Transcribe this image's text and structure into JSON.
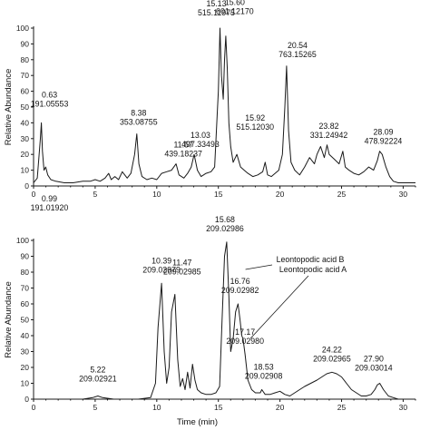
{
  "chart_data": [
    {
      "type": "line",
      "ylabel": "Relative Abundance",
      "xlabel": "",
      "ylim": [
        0,
        100
      ],
      "xlim": [
        0,
        31
      ],
      "yticks": [
        0,
        10,
        20,
        30,
        40,
        50,
        60,
        70,
        80,
        90,
        100
      ],
      "xticks": [
        0,
        5,
        10,
        15,
        20,
        25,
        30
      ],
      "series": [
        {
          "x": [
            0,
            0.3,
            0.55,
            0.63,
            0.72,
            0.85,
            0.99,
            1.15,
            1.4,
            1.8,
            2.5,
            3.2,
            4.0,
            4.6,
            5.0,
            5.4,
            5.8,
            6.1,
            6.3,
            6.6,
            6.9,
            7.2,
            7.6,
            7.9,
            8.2,
            8.38,
            8.55,
            8.8,
            9.2,
            9.6,
            10.0,
            10.4,
            10.8,
            11.2,
            11.57,
            11.8,
            12.2,
            12.5,
            12.8,
            13.03,
            13.3,
            13.6,
            14.0,
            14.4,
            14.7,
            14.9,
            15.0,
            15.13,
            15.25,
            15.4,
            15.5,
            15.6,
            15.72,
            15.85,
            16.0,
            16.2,
            16.5,
            16.8,
            17.1,
            17.4,
            17.8,
            18.2,
            18.6,
            18.8,
            19.0,
            19.3,
            19.6,
            19.9,
            20.2,
            20.4,
            20.54,
            20.7,
            20.9,
            21.2,
            21.6,
            22.0,
            22.4,
            22.8,
            23.0,
            23.3,
            23.6,
            23.82,
            24.0,
            24.4,
            24.8,
            25.1,
            25.3,
            25.6,
            26.0,
            26.4,
            26.8,
            27.2,
            27.6,
            27.9,
            28.09,
            28.3,
            28.6,
            28.9,
            29.2,
            29.6,
            30.0,
            30.5,
            31.0
          ],
          "y": [
            2,
            5,
            30,
            40,
            22,
            10,
            12,
            7,
            4,
            3,
            2,
            2,
            3,
            3,
            4,
            3,
            5,
            8,
            4,
            6,
            4,
            9,
            5,
            8,
            20,
            33,
            14,
            6,
            4,
            5,
            4,
            8,
            9,
            10,
            14,
            7,
            5,
            8,
            12,
            20,
            10,
            6,
            8,
            9,
            12,
            45,
            60,
            100,
            70,
            55,
            80,
            95,
            75,
            40,
            25,
            15,
            20,
            12,
            10,
            8,
            6,
            7,
            9,
            15,
            7,
            6,
            8,
            10,
            20,
            50,
            76,
            35,
            15,
            10,
            7,
            12,
            18,
            14,
            20,
            25,
            18,
            26,
            20,
            17,
            14,
            22,
            12,
            10,
            8,
            7,
            9,
            12,
            10,
            16,
            22,
            20,
            12,
            6,
            3,
            2,
            2,
            2,
            2
          ]
        }
      ],
      "annotations": [
        {
          "rt": "0.63",
          "mz": "191.05553",
          "x": 0.63,
          "y": 40
        },
        {
          "rt": "0.99",
          "mz": "191.01920",
          "x": 0.99,
          "y": 12
        },
        {
          "rt": "8.38",
          "mz": "353.08755",
          "x": 8.38,
          "y": 33
        },
        {
          "rt": "11.57",
          "mz": "439.18237",
          "x": 11.57,
          "y": 14
        },
        {
          "rt": "13.03",
          "mz": "497.33493",
          "x": 13.03,
          "y": 20
        },
        {
          "rt": "15.13",
          "mz": "515.11975",
          "x": 15.13,
          "y": 100
        },
        {
          "rt": "15.60",
          "mz": "601.12170",
          "x": 15.6,
          "y": 95
        },
        {
          "rt": "15.92",
          "mz": "515.12030",
          "x": 15.92,
          "y": 30
        },
        {
          "rt": "20.54",
          "mz": "763.15265",
          "x": 20.54,
          "y": 76
        },
        {
          "rt": "23.82",
          "mz": "331.24942",
          "x": 23.82,
          "y": 26
        },
        {
          "rt": "28.09",
          "mz": "478.92224",
          "x": 28.09,
          "y": 22
        }
      ]
    },
    {
      "type": "line",
      "ylabel": "Relative Abundance",
      "xlabel": "Time (min)",
      "ylim": [
        0,
        100
      ],
      "xlim": [
        0,
        31
      ],
      "yticks": [
        0,
        10,
        20,
        30,
        40,
        50,
        60,
        70,
        80,
        90,
        100
      ],
      "xticks": [
        0,
        5,
        10,
        15,
        20,
        25,
        30
      ],
      "series": [
        {
          "x": [
            0,
            1,
            2,
            3,
            4,
            4.8,
            5.22,
            5.6,
            6.5,
            7.5,
            8.5,
            9.5,
            9.9,
            10.1,
            10.39,
            10.6,
            10.8,
            11.0,
            11.2,
            11.47,
            11.7,
            11.9,
            12.1,
            12.3,
            12.5,
            12.7,
            12.9,
            13.1,
            13.3,
            13.6,
            14.0,
            14.4,
            14.8,
            15.1,
            15.3,
            15.5,
            15.68,
            15.85,
            16.0,
            16.2,
            16.4,
            16.6,
            16.76,
            16.9,
            17.0,
            17.17,
            17.4,
            17.7,
            18.0,
            18.4,
            18.53,
            18.8,
            19.2,
            19.6,
            20.0,
            20.4,
            20.8,
            21.2,
            21.6,
            22.0,
            22.5,
            23.0,
            23.4,
            23.8,
            24.22,
            24.6,
            25.0,
            25.4,
            25.8,
            26.2,
            26.6,
            27.0,
            27.4,
            27.7,
            27.9,
            28.1,
            28.4,
            28.8,
            29.2,
            29.6,
            30.0,
            30.5,
            31.0
          ],
          "y": [
            0,
            0,
            0,
            0,
            0,
            1,
            2,
            1,
            0,
            0,
            0,
            1,
            10,
            45,
            73,
            30,
            10,
            20,
            55,
            66,
            25,
            8,
            13,
            6,
            17,
            7,
            22,
            12,
            6,
            4,
            3,
            3,
            4,
            8,
            50,
            90,
            99,
            65,
            30,
            38,
            55,
            60,
            50,
            40,
            38,
            28,
            12,
            6,
            4,
            4,
            6,
            3,
            3,
            4,
            5,
            3,
            2,
            4,
            6,
            8,
            10,
            12,
            14,
            16,
            17,
            16,
            14,
            10,
            6,
            4,
            2,
            2,
            3,
            6,
            9,
            10,
            6,
            2,
            1,
            0,
            0,
            0,
            0
          ]
        }
      ],
      "annotations": [
        {
          "rt": "5.22",
          "mz": "209.02921",
          "x": 5.22,
          "y": 2
        },
        {
          "rt": "10.39",
          "mz": "209.02979",
          "x": 10.39,
          "y": 73
        },
        {
          "rt": "11.47",
          "mz": "209.02985",
          "x": 11.47,
          "y": 66
        },
        {
          "rt": "15.68",
          "mz": "209.02986",
          "x": 15.68,
          "y": 99
        },
        {
          "rt": "16.76",
          "mz": "209.02982",
          "x": 16.76,
          "y": 60
        },
        {
          "rt": "17.17",
          "mz": "209.02980",
          "x": 17.17,
          "y": 28
        },
        {
          "rt": "18.53",
          "mz": "209.02908",
          "x": 18.53,
          "y": 6
        },
        {
          "rt": "24.22",
          "mz": "209.02965",
          "x": 24.22,
          "y": 17
        },
        {
          "rt": "27.90",
          "mz": "209.03014",
          "x": 27.9,
          "y": 10
        }
      ],
      "callouts": [
        {
          "text": "Leontopodic acid B",
          "target_x": 16.76,
          "target_y": 60
        },
        {
          "text": "Leontopodic acid A",
          "target_x": 17.17,
          "target_y": 28
        }
      ]
    }
  ]
}
